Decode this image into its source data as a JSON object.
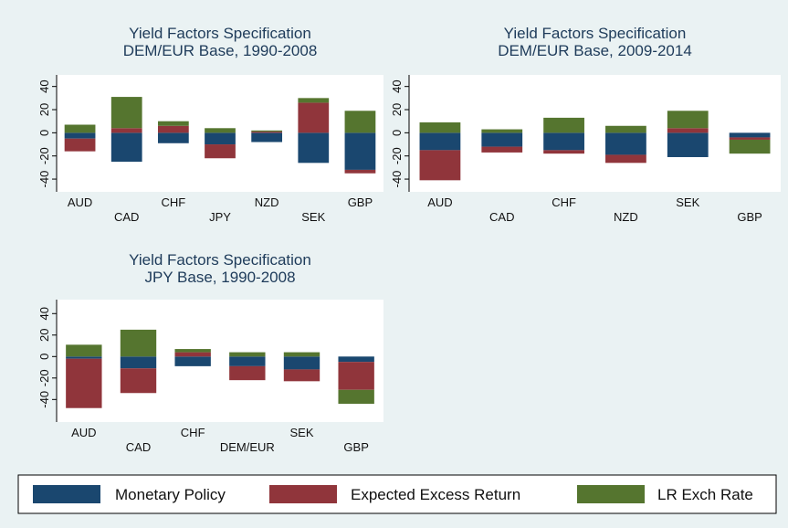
{
  "chart_data": [
    {
      "type": "bar",
      "stacked": true,
      "title": "Yield Factors Specification",
      "subtitle": "DEM/EUR Base, 1990-2008",
      "categories": [
        "AUD",
        "CAD",
        "CHF",
        "JPY",
        "NZD",
        "SEK",
        "GBP"
      ],
      "series": [
        {
          "name": "Monetary Policy",
          "color": "#1a476f",
          "values": [
            -5,
            -25,
            -9,
            -10,
            -8,
            -26,
            -32
          ]
        },
        {
          "name": "Expected Excess Return",
          "color": "#90353b",
          "values": [
            -11,
            4,
            6,
            -12,
            1,
            26,
            -3
          ]
        },
        {
          "name": "LR Exch Rate",
          "color": "#55752f",
          "values": [
            7,
            27,
            4,
            4,
            1,
            4,
            19
          ]
        }
      ],
      "ylim": [
        -51,
        50
      ],
      "yticks": [
        -40,
        -20,
        0,
        20,
        40
      ]
    },
    {
      "type": "bar",
      "stacked": true,
      "title": "Yield Factors Specification",
      "subtitle": "DEM/EUR Base, 2009-2014",
      "categories": [
        "AUD",
        "CAD",
        "CHF",
        "NZD",
        "SEK",
        "GBP"
      ],
      "series": [
        {
          "name": "Monetary Policy",
          "color": "#1a476f",
          "values": [
            -15,
            -12,
            -15,
            -19,
            -21,
            -4
          ]
        },
        {
          "name": "Expected Excess Return",
          "color": "#90353b",
          "values": [
            -26,
            -5,
            -3,
            -7,
            4,
            -2
          ]
        },
        {
          "name": "LR Exch Rate",
          "color": "#55752f",
          "values": [
            9,
            3,
            13,
            6,
            15,
            -12
          ]
        }
      ],
      "ylim": [
        -51,
        50
      ],
      "yticks": [
        -40,
        -20,
        0,
        20,
        40
      ]
    },
    {
      "type": "bar",
      "stacked": true,
      "title": "Yield Factors Specification",
      "subtitle": "JPY Base, 1990-2008",
      "categories": [
        "AUD",
        "CAD",
        "CHF",
        "DEM/EUR",
        "SEK",
        "GBP"
      ],
      "series": [
        {
          "name": "Monetary Policy",
          "color": "#1a476f",
          "values": [
            -2,
            -11,
            -9,
            -9,
            -12,
            -5
          ]
        },
        {
          "name": "Expected Excess Return",
          "color": "#90353b",
          "values": [
            -46,
            -23,
            4,
            -13,
            -11,
            -26
          ]
        },
        {
          "name": "LR Exch Rate",
          "color": "#55752f",
          "values": [
            11,
            25,
            3,
            4,
            4,
            -13
          ]
        }
      ],
      "ylim": [
        -61,
        53
      ],
      "yticks": [
        -40,
        -20,
        0,
        20,
        40
      ]
    }
  ]
}
